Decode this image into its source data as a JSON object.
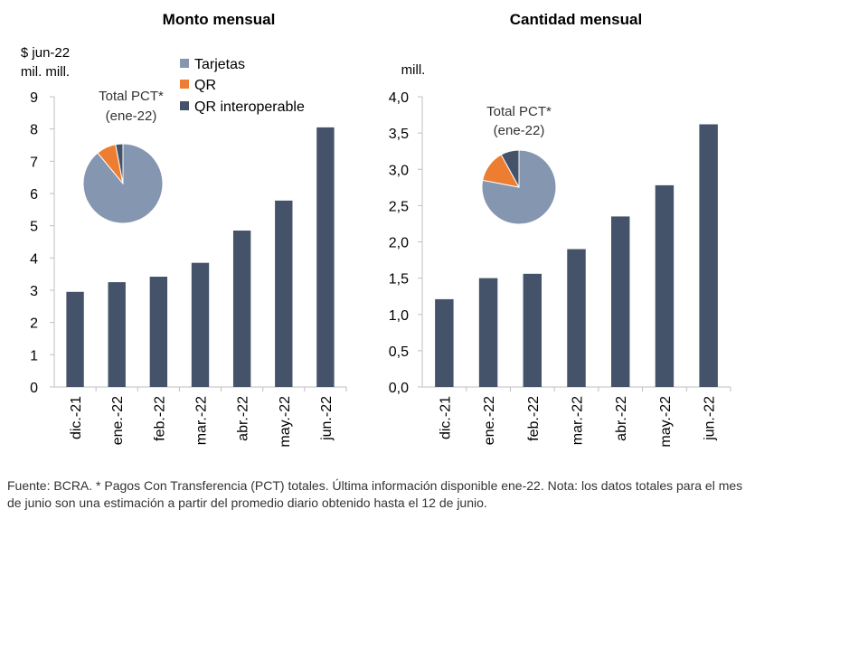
{
  "colors": {
    "bar": "#44536a",
    "tarjetas": "#8496b0",
    "qr": "#ed7d31",
    "qr_interoperable": "#44536a",
    "axis": "#bfbfbf"
  },
  "legend": {
    "items": [
      {
        "label": "Tarjetas",
        "color": "#8496b0"
      },
      {
        "label": "QR",
        "color": "#ed7d31"
      },
      {
        "label": "QR interoperable",
        "color": "#44536a"
      }
    ]
  },
  "chart_data": [
    {
      "type": "bar",
      "title": "Monto mensual",
      "ylabel_line1": "$ jun-22",
      "ylabel_line2": "mil. mill.",
      "categories": [
        "dic.-21",
        "ene.-22",
        "feb.-22",
        "mar.-22",
        "abr.-22",
        "may.-22",
        "jun.-22"
      ],
      "values": [
        2.95,
        3.25,
        3.42,
        3.85,
        4.85,
        5.78,
        8.05
      ],
      "ylim": [
        0,
        9
      ],
      "yticks": [
        "0",
        "1",
        "2",
        "3",
        "4",
        "5",
        "6",
        "7",
        "8",
        "9"
      ],
      "inset_pie": {
        "type": "pie",
        "label_line1": "Total PCT*",
        "label_line2": "(ene-22)",
        "labels": [
          "Tarjetas",
          "QR",
          "QR interoperable"
        ],
        "values": [
          89,
          8,
          3
        ]
      }
    },
    {
      "type": "bar",
      "title": "Cantidad mensual",
      "ylabel_line1": "mill.",
      "categories": [
        "dic.-21",
        "ene.-22",
        "feb.-22",
        "mar.-22",
        "abr.-22",
        "may.-22",
        "jun.-22"
      ],
      "values": [
        1.21,
        1.5,
        1.56,
        1.9,
        2.35,
        2.78,
        3.62
      ],
      "ylim": [
        0,
        4
      ],
      "yticks": [
        "0,0",
        "0,5",
        "1,0",
        "1,5",
        "2,0",
        "2,5",
        "3,0",
        "3,5",
        "4,0"
      ],
      "inset_pie": {
        "type": "pie",
        "label_line1": "Total PCT*",
        "label_line2": "(ene-22)",
        "labels": [
          "Tarjetas",
          "QR",
          "QR interoperable"
        ],
        "values": [
          78,
          14,
          8
        ]
      }
    }
  ],
  "footnote": "Fuente: BCRA. * Pagos Con Transferencia (PCT) totales. Última información disponible ene-22. Nota: los datos totales para el mes de junio son una estimación a partir del promedio diario obtenido hasta el 12 de junio."
}
